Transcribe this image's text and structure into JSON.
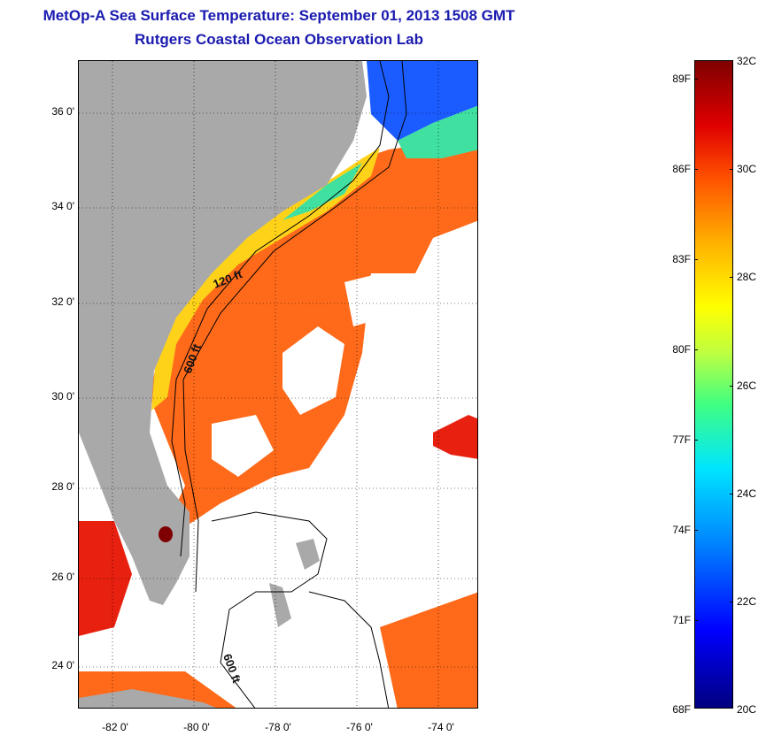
{
  "title": {
    "line1": "MetOp-A Sea Surface Temperature:  September 01, 2013 1508 GMT",
    "line2": "Rutgers Coastal Ocean Observation Lab"
  },
  "map": {
    "lat_ticks": [
      "36 0'",
      "34 0'",
      "32 0'",
      "30 0'",
      "28 0'",
      "26 0'",
      "24 0'"
    ],
    "lon_ticks": [
      "-82 0'",
      "-80 0'",
      "-78 0'",
      "-76 0'",
      "-74 0'"
    ],
    "contour_labels": {
      "c120": "120 ft",
      "c600a": "600 ft",
      "c600b": "600 ft"
    },
    "colors": {
      "land": "#a9a9a9",
      "cloud": "#ffffff",
      "warm": "#ff6a1a",
      "hot": "#e82010",
      "cool": "#ffd21a",
      "cold": "#1a5cff",
      "mid": "#40e0a0"
    }
  },
  "colorbar": {
    "fahrenheit": [
      "89F",
      "86F",
      "83F",
      "80F",
      "77F",
      "74F",
      "71F",
      "68F"
    ],
    "celsius": [
      "32C",
      "30C",
      "28C",
      "26C",
      "24C",
      "22C",
      "20C"
    ],
    "min_c": 20,
    "max_c": 32
  }
}
